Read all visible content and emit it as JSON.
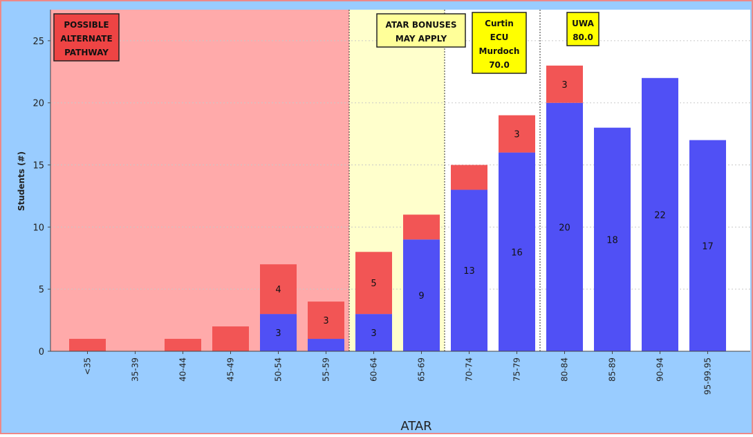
{
  "chart_data": {
    "type": "bar",
    "stacked": true,
    "title": "",
    "xlabel": "ATAR",
    "ylabel": "Students (#)",
    "ylim": [
      0,
      27.5
    ],
    "yticks": [
      0,
      5,
      10,
      15,
      20,
      25
    ],
    "grid": true,
    "categories": [
      "<35",
      "35-39",
      "40-44",
      "45-49",
      "50-54",
      "55-59",
      "60-64",
      "65-69",
      "70-74",
      "75-79",
      "80-84",
      "85-89",
      "90-94",
      "95-99.95"
    ],
    "series": [
      {
        "color": "#5050f5",
        "values": [
          0,
          0,
          0,
          0,
          3,
          1,
          3,
          9,
          13,
          16,
          20,
          18,
          22,
          17
        ]
      },
      {
        "color": "#f25555",
        "values": [
          1,
          0,
          1,
          2,
          4,
          3,
          5,
          2,
          2,
          3,
          3,
          0,
          0,
          0
        ]
      }
    ],
    "value_labels": {
      "base": [
        "",
        "",
        "",
        "",
        "3",
        "",
        "3",
        "9",
        "13",
        "16",
        "20",
        "18",
        "22",
        "17"
      ],
      "top": [
        "",
        "",
        "",
        "",
        "4",
        "3",
        "5",
        "",
        "",
        "3",
        "3",
        "",
        "",
        ""
      ]
    },
    "regions": [
      {
        "from_index": 0,
        "to_index": 5,
        "color": "#ffaaaa",
        "label": [
          "POSSIBLE",
          "ALTERNATE",
          "PATHWAY"
        ],
        "label_bg": "#ee4444"
      },
      {
        "from_index": 6,
        "to_index": 7,
        "color": "#ffffcc",
        "label": [
          "ATAR BONUSES",
          "MAY APPLY"
        ],
        "label_bg": "#ffff99"
      }
    ],
    "thresholds": [
      {
        "at_index": 8,
        "label": [
          "Curtin",
          "ECU",
          "Murdoch",
          "70.0"
        ],
        "label_bg": "#ffff00"
      },
      {
        "at_index": 10,
        "label": [
          "UWA",
          "80.0"
        ],
        "label_bg": "#ffff00"
      }
    ],
    "colors": {
      "background": "#99ccff",
      "plot": "#ffffff",
      "border": "#ee8888"
    }
  }
}
